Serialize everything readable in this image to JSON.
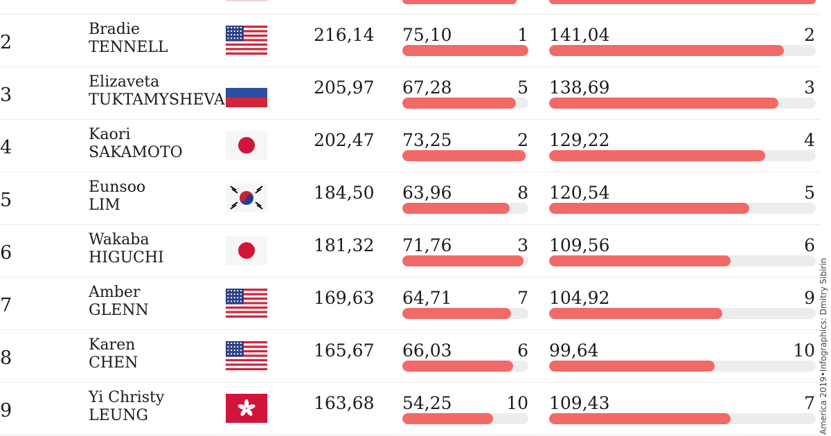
{
  "ui": {
    "fill_color": "#f16a68",
    "track_color": "#ededed"
  },
  "credit": "America 2019•Infographics: Dmitry Sibirin",
  "rows": [
    {
      "rank": "2",
      "first": "Bradie",
      "last": "TENNELL",
      "flag": "usa-flag-icon",
      "total": "216,14",
      "sp": "75,10",
      "sp_rank": "1",
      "sp_pct": 100,
      "fs": "141,04",
      "fs_rank": "2",
      "fs_pct": 88
    },
    {
      "rank": "3",
      "first": "Elizaveta",
      "last": "TUKTAMYSHEVA",
      "flag": "russia-flag-icon",
      "total": "205,97",
      "sp": "67,28",
      "sp_rank": "5",
      "sp_pct": 90,
      "fs": "138,69",
      "fs_rank": "3",
      "fs_pct": 86
    },
    {
      "rank": "4",
      "first": "Kaori",
      "last": "SAKAMOTO",
      "flag": "japan-flag-icon",
      "total": "202,47",
      "sp": "73,25",
      "sp_rank": "2",
      "sp_pct": 98,
      "fs": "129,22",
      "fs_rank": "4",
      "fs_pct": 81
    },
    {
      "rank": "5",
      "first": "Eunsoo",
      "last": "LIM",
      "flag": "korea-flag-icon",
      "total": "184,50",
      "sp": "63,96",
      "sp_rank": "8",
      "sp_pct": 85,
      "fs": "120,54",
      "fs_rank": "5",
      "fs_pct": 75
    },
    {
      "rank": "6",
      "first": "Wakaba",
      "last": "HIGUCHI",
      "flag": "japan-flag-icon",
      "total": "181,32",
      "sp": "71,76",
      "sp_rank": "3",
      "sp_pct": 96,
      "fs": "109,56",
      "fs_rank": "6",
      "fs_pct": 68
    },
    {
      "rank": "7",
      "first": "Amber",
      "last": "GLENN",
      "flag": "usa-flag-icon",
      "total": "169,63",
      "sp": "64,71",
      "sp_rank": "7",
      "sp_pct": 86,
      "fs": "104,92",
      "fs_rank": "9",
      "fs_pct": 65
    },
    {
      "rank": "8",
      "first": "Karen",
      "last": "CHEN",
      "flag": "usa-flag-icon",
      "total": "165,67",
      "sp": "66,03",
      "sp_rank": "6",
      "sp_pct": 88,
      "fs": "99,64",
      "fs_rank": "10",
      "fs_pct": 62
    },
    {
      "rank": "9",
      "first": "Yi Christy",
      "last": "LEUNG",
      "flag": "hongkong-flag-icon",
      "total": "163,68",
      "sp": "54,25",
      "sp_rank": "10",
      "sp_pct": 72,
      "fs": "109,43",
      "fs_rank": "7",
      "fs_pct": 68
    }
  ]
}
